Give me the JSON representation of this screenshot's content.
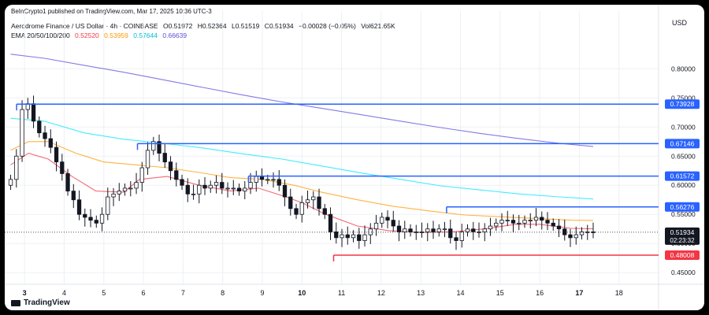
{
  "header": {
    "publish_line": "BeInCrypto1 published on TradingView.com, Mar 17, 2025 10:36 UTC-3",
    "symbol": "Aerodrome Finance / US Dollar · 4h · COINBASE",
    "ohlc": {
      "o_label": "O",
      "o": "0.51972",
      "h_label": "H",
      "h": "0.52364",
      "l_label": "L",
      "l": "0.51519",
      "c_label": "C",
      "c": "0.51934",
      "change": "−0.00028 (−0.05%)",
      "vol": "Vol621.65K"
    },
    "ema_label": "EMA 20/50/100/200",
    "ema_values": [
      "0.52520",
      "0.53959",
      "0.57644",
      "0.66639"
    ]
  },
  "currency": "USD",
  "branding": "TradingView",
  "colors": {
    "up_candle": "#ffffff",
    "down_candle": "#131722",
    "ema20": "#f23645",
    "ema50": "#ff9800",
    "ema100": "#00e5ff",
    "ema200": "#5b4ddb",
    "resistance_line": "#2962ff",
    "support_line": "#f23645",
    "grid": "#eef0f3"
  },
  "chart_data": {
    "type": "line",
    "title": "Aerodrome Finance / US Dollar · 4h · COINBASE",
    "ylim": [
      0.43,
      0.845
    ],
    "xlim": [
      2.5,
      19.0
    ],
    "y_ticks": [
      "0.80000",
      "0.75000",
      "0.70000",
      "0.65000",
      "0.60000",
      "0.55000",
      "0.50000",
      "0.45000"
    ],
    "x_ticks": [
      {
        "x": 3,
        "label": "3"
      },
      {
        "x": 4,
        "label": "4"
      },
      {
        "x": 5,
        "label": "5"
      },
      {
        "x": 6,
        "label": "6"
      },
      {
        "x": 7,
        "label": "7"
      },
      {
        "x": 8,
        "label": "8"
      },
      {
        "x": 9,
        "label": "9"
      },
      {
        "x": 10,
        "label": "10"
      },
      {
        "x": 11,
        "label": "11"
      },
      {
        "x": 12,
        "label": "12"
      },
      {
        "x": 13,
        "label": "13"
      },
      {
        "x": 14,
        "label": "14"
      },
      {
        "x": 15,
        "label": "15"
      },
      {
        "x": 16,
        "label": "16"
      },
      {
        "x": 17,
        "label": "17"
      },
      {
        "x": 18,
        "label": "18"
      }
    ],
    "candles_close": [
      0.61,
      0.65,
      0.73,
      0.74,
      0.71,
      0.69,
      0.68,
      0.665,
      0.64,
      0.62,
      0.59,
      0.575,
      0.55,
      0.545,
      0.54,
      0.535,
      0.55,
      0.58,
      0.585,
      0.59,
      0.595,
      0.595,
      0.605,
      0.63,
      0.66,
      0.675,
      0.655,
      0.64,
      0.625,
      0.61,
      0.6,
      0.585,
      0.585,
      0.6,
      0.595,
      0.6,
      0.605,
      0.595,
      0.595,
      0.595,
      0.59,
      0.595,
      0.605,
      0.615,
      0.61,
      0.61,
      0.61,
      0.6,
      0.58,
      0.56,
      0.55,
      0.57,
      0.575,
      0.58,
      0.56,
      0.55,
      0.52,
      0.51,
      0.515,
      0.51,
      0.515,
      0.505,
      0.515,
      0.525,
      0.535,
      0.545,
      0.54,
      0.53,
      0.52,
      0.525,
      0.52,
      0.52,
      0.52,
      0.525,
      0.52,
      0.525,
      0.525,
      0.51,
      0.505,
      0.52,
      0.525,
      0.52,
      0.52,
      0.525,
      0.53,
      0.535,
      0.54,
      0.54,
      0.535,
      0.535,
      0.54,
      0.54,
      0.545,
      0.54,
      0.535,
      0.53,
      0.525,
      0.515,
      0.51,
      0.515,
      0.52,
      0.52,
      0.519
    ],
    "candle_x_start": 2.65,
    "candle_x_end": 17.35,
    "series": [
      {
        "name": "EMA 20",
        "color": "#f23645",
        "x": [
          2.65,
          3.1,
          3.6,
          4.2,
          4.8,
          5.5,
          5.9,
          6.6,
          7.4,
          8.2,
          8.9,
          9.6,
          10.0,
          10.6,
          11.4,
          12.2,
          13.0,
          13.8,
          14.6,
          15.4,
          16.0,
          16.8,
          17.35
        ],
        "y": [
          0.635,
          0.655,
          0.645,
          0.615,
          0.59,
          0.588,
          0.61,
          0.615,
          0.6,
          0.59,
          0.595,
          0.58,
          0.57,
          0.55,
          0.53,
          0.522,
          0.519,
          0.52,
          0.525,
          0.533,
          0.533,
          0.526,
          0.5252
        ]
      },
      {
        "name": "EMA 50",
        "color": "#ff9800",
        "x": [
          2.65,
          3.1,
          3.6,
          4.3,
          5.0,
          5.8,
          6.6,
          7.4,
          8.2,
          9.0,
          9.8,
          10.5,
          11.4,
          12.3,
          13.2,
          14.1,
          15.0,
          15.9,
          16.8,
          17.35
        ],
        "y": [
          0.66,
          0.675,
          0.675,
          0.655,
          0.64,
          0.635,
          0.63,
          0.622,
          0.613,
          0.61,
          0.6,
          0.588,
          0.575,
          0.564,
          0.556,
          0.549,
          0.546,
          0.543,
          0.54,
          0.5396
        ]
      },
      {
        "name": "EMA 100",
        "color": "#00e5ff",
        "x": [
          2.65,
          3.5,
          4.5,
          5.5,
          6.5,
          7.5,
          8.5,
          9.5,
          10.5,
          11.5,
          12.5,
          13.5,
          14.5,
          15.5,
          16.5,
          17.35
        ],
        "y": [
          0.715,
          0.71,
          0.69,
          0.679,
          0.672,
          0.664,
          0.654,
          0.645,
          0.633,
          0.621,
          0.61,
          0.599,
          0.592,
          0.585,
          0.58,
          0.5764
        ]
      },
      {
        "name": "EMA 200",
        "color": "#5b4ddb",
        "x": [
          2.65,
          3.5,
          4.5,
          5.5,
          6.5,
          7.5,
          8.5,
          9.5,
          10.5,
          11.5,
          12.5,
          13.5,
          14.5,
          15.5,
          16.5,
          17.35
        ],
        "y": [
          0.825,
          0.818,
          0.806,
          0.794,
          0.781,
          0.768,
          0.755,
          0.743,
          0.732,
          0.721,
          0.71,
          0.699,
          0.689,
          0.68,
          0.672,
          0.6664
        ]
      }
    ],
    "hlines": [
      {
        "value": 0.73928,
        "label": "0.73928",
        "color": "#2962ff",
        "x_start": 2.8
      },
      {
        "value": 0.67146,
        "label": "0.67146",
        "color": "#2962ff",
        "x_start": 5.85
      },
      {
        "value": 0.61572,
        "label": "0.61572",
        "color": "#2962ff",
        "x_start": 8.65
      },
      {
        "value": 0.56276,
        "label": "0.56276",
        "color": "#2962ff",
        "x_start": 13.65
      },
      {
        "value": 0.48008,
        "label": "0.48008",
        "color": "#f23645",
        "x_start": 10.8
      }
    ],
    "current_price": {
      "value": 0.51934,
      "label": "0.51934",
      "countdown": "02:23:32"
    },
    "grid": true
  }
}
